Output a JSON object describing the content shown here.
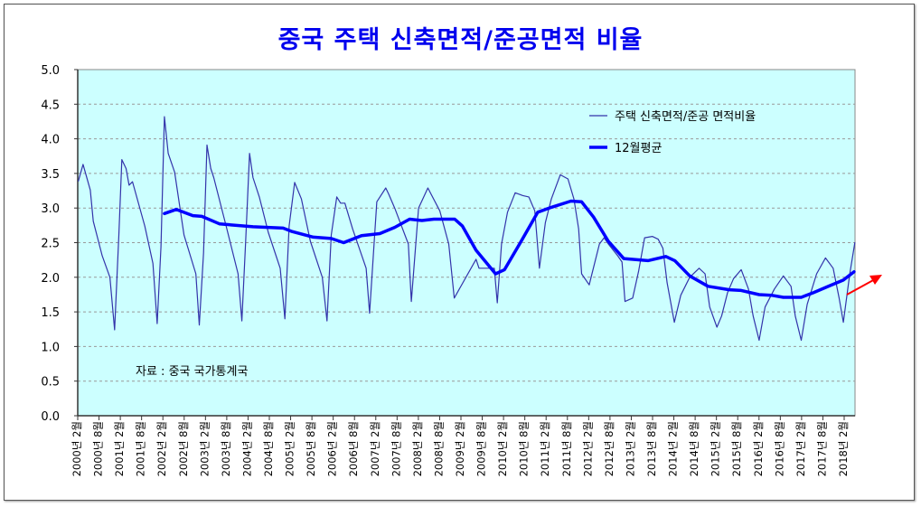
{
  "chart_data": {
    "type": "line",
    "title": "중국 주택 신축면적/준공면적 비율",
    "xlabel": "",
    "ylabel": "",
    "ylim": [
      0,
      5
    ],
    "yticks": [
      "0.0",
      "0.5",
      "1.0",
      "1.5",
      "2.0",
      "2.5",
      "3.0",
      "3.5",
      "4.0",
      "4.5",
      "5.0"
    ],
    "x_unit": "decimal year",
    "xlim": [
      2000.083,
      2018.4
    ],
    "xtick_labels": [
      "2000년 2월",
      "2000년 8월",
      "2001년 2월",
      "2001년 8월",
      "2002년 2월",
      "2002년 8월",
      "2003년 2월",
      "2003년 8월",
      "2004년 2월",
      "2004년 8월",
      "2005년 2월",
      "2005년 8월",
      "2006년 2월",
      "2006년 8월",
      "2007년 2월",
      "2007년 8월",
      "2008년 2월",
      "2008년 8월",
      "2009년 2월",
      "2009년 8월",
      "2010년 2월",
      "2010년 8월",
      "2011년 2월",
      "2011년 8월",
      "2012년 2월",
      "2012년 8월",
      "2013년 2월",
      "2013년 8월",
      "2014년 2월",
      "2014년 8월",
      "2015년 2월",
      "2015년 8월",
      "2016년 2월",
      "2016년 8월",
      "2017년 2월",
      "2017년 8월",
      "2018년 2월"
    ],
    "grid": true,
    "legend_position": "top-right",
    "annotation": "자료 : 중국 국가통계국",
    "colors": {
      "plot_bg": "#ccffff",
      "ratio": "#3333aa",
      "avg": "#0000ff",
      "title": "#0000ee",
      "arrow": "#ff0000"
    },
    "series": [
      {
        "name": "주택 신축면적/준공 면적비율",
        "points": [
          [
            2000.12,
            3.39
          ],
          [
            2000.23,
            3.63
          ],
          [
            2000.4,
            3.26
          ],
          [
            2000.47,
            2.81
          ],
          [
            2000.68,
            2.31
          ],
          [
            2000.86,
            2.0
          ],
          [
            2000.97,
            1.24
          ],
          [
            2001.07,
            2.61
          ],
          [
            2001.14,
            3.7
          ],
          [
            2001.24,
            3.57
          ],
          [
            2001.31,
            3.33
          ],
          [
            2001.39,
            3.38
          ],
          [
            2001.68,
            2.74
          ],
          [
            2001.87,
            2.2
          ],
          [
            2001.97,
            1.33
          ],
          [
            2002.06,
            2.44
          ],
          [
            2002.14,
            4.32
          ],
          [
            2002.23,
            3.79
          ],
          [
            2002.38,
            3.52
          ],
          [
            2002.6,
            2.61
          ],
          [
            2002.88,
            2.05
          ],
          [
            2002.96,
            1.31
          ],
          [
            2003.06,
            2.35
          ],
          [
            2003.14,
            3.91
          ],
          [
            2003.23,
            3.57
          ],
          [
            2003.3,
            3.44
          ],
          [
            2003.59,
            2.74
          ],
          [
            2003.87,
            2.05
          ],
          [
            2003.96,
            1.37
          ],
          [
            2004.05,
            2.52
          ],
          [
            2004.14,
            3.79
          ],
          [
            2004.22,
            3.44
          ],
          [
            2004.37,
            3.16
          ],
          [
            2004.58,
            2.65
          ],
          [
            2004.86,
            2.13
          ],
          [
            2004.97,
            1.4
          ],
          [
            2005.07,
            2.74
          ],
          [
            2005.2,
            3.37
          ],
          [
            2005.36,
            3.13
          ],
          [
            2005.57,
            2.52
          ],
          [
            2005.85,
            2.0
          ],
          [
            2005.96,
            1.37
          ],
          [
            2006.06,
            2.61
          ],
          [
            2006.19,
            3.16
          ],
          [
            2006.28,
            3.07
          ],
          [
            2006.38,
            3.07
          ],
          [
            2006.56,
            2.7
          ],
          [
            2006.88,
            2.13
          ],
          [
            2006.96,
            1.48
          ],
          [
            2007.13,
            3.09
          ],
          [
            2007.34,
            3.29
          ],
          [
            2007.41,
            3.2
          ],
          [
            2007.55,
            3.0
          ],
          [
            2007.87,
            2.48
          ],
          [
            2007.94,
            1.65
          ],
          [
            2008.11,
            3.0
          ],
          [
            2008.33,
            3.29
          ],
          [
            2008.61,
            2.96
          ],
          [
            2008.82,
            2.48
          ],
          [
            2008.95,
            1.7
          ],
          [
            2009.46,
            2.26
          ],
          [
            2009.53,
            2.13
          ],
          [
            2009.89,
            2.13
          ],
          [
            2009.96,
            1.63
          ],
          [
            2010.06,
            2.48
          ],
          [
            2010.2,
            2.94
          ],
          [
            2010.38,
            3.22
          ],
          [
            2010.56,
            3.18
          ],
          [
            2010.7,
            3.16
          ],
          [
            2010.84,
            2.96
          ],
          [
            2010.95,
            2.13
          ],
          [
            2011.09,
            2.79
          ],
          [
            2011.23,
            3.13
          ],
          [
            2011.44,
            3.48
          ],
          [
            2011.62,
            3.42
          ],
          [
            2011.76,
            3.13
          ],
          [
            2011.87,
            2.7
          ],
          [
            2011.94,
            2.05
          ],
          [
            2012.12,
            1.89
          ],
          [
            2012.36,
            2.48
          ],
          [
            2012.47,
            2.57
          ],
          [
            2012.57,
            2.48
          ],
          [
            2012.79,
            2.31
          ],
          [
            2012.89,
            2.22
          ],
          [
            2012.96,
            1.65
          ],
          [
            2013.14,
            1.7
          ],
          [
            2013.28,
            2.09
          ],
          [
            2013.42,
            2.57
          ],
          [
            2013.6,
            2.59
          ],
          [
            2013.74,
            2.55
          ],
          [
            2013.85,
            2.42
          ],
          [
            2013.95,
            1.92
          ],
          [
            2014.12,
            1.35
          ],
          [
            2014.27,
            1.74
          ],
          [
            2014.48,
            2.0
          ],
          [
            2014.7,
            2.13
          ],
          [
            2014.84,
            2.05
          ],
          [
            2014.95,
            1.57
          ],
          [
            2015.12,
            1.28
          ],
          [
            2015.23,
            1.44
          ],
          [
            2015.37,
            1.78
          ],
          [
            2015.51,
            1.98
          ],
          [
            2015.69,
            2.11
          ],
          [
            2015.86,
            1.83
          ],
          [
            2015.97,
            1.44
          ],
          [
            2016.11,
            1.09
          ],
          [
            2016.25,
            1.57
          ],
          [
            2016.47,
            1.83
          ],
          [
            2016.68,
            2.02
          ],
          [
            2016.86,
            1.87
          ],
          [
            2016.96,
            1.44
          ],
          [
            2017.1,
            1.09
          ],
          [
            2017.24,
            1.61
          ],
          [
            2017.46,
            2.05
          ],
          [
            2017.67,
            2.28
          ],
          [
            2017.85,
            2.13
          ],
          [
            2017.99,
            1.7
          ],
          [
            2018.09,
            1.35
          ],
          [
            2018.24,
            2.05
          ],
          [
            2018.36,
            2.5
          ]
        ]
      },
      {
        "name": "12월평균",
        "points": [
          [
            2002.14,
            2.92
          ],
          [
            2002.42,
            2.98
          ],
          [
            2002.81,
            2.89
          ],
          [
            2003.02,
            2.88
          ],
          [
            2003.44,
            2.77
          ],
          [
            2004.22,
            2.73
          ],
          [
            2004.93,
            2.71
          ],
          [
            2005.14,
            2.66
          ],
          [
            2005.64,
            2.58
          ],
          [
            2006.06,
            2.56
          ],
          [
            2006.35,
            2.5
          ],
          [
            2006.77,
            2.6
          ],
          [
            2007.2,
            2.63
          ],
          [
            2007.55,
            2.72
          ],
          [
            2007.9,
            2.84
          ],
          [
            2008.19,
            2.82
          ],
          [
            2008.47,
            2.84
          ],
          [
            2008.96,
            2.84
          ],
          [
            2009.14,
            2.74
          ],
          [
            2009.46,
            2.39
          ],
          [
            2009.92,
            2.05
          ],
          [
            2010.13,
            2.11
          ],
          [
            2010.52,
            2.52
          ],
          [
            2010.91,
            2.94
          ],
          [
            2011.23,
            3.01
          ],
          [
            2011.69,
            3.1
          ],
          [
            2011.94,
            3.09
          ],
          [
            2012.22,
            2.87
          ],
          [
            2012.57,
            2.52
          ],
          [
            2012.93,
            2.27
          ],
          [
            2013.5,
            2.24
          ],
          [
            2013.92,
            2.3
          ],
          [
            2014.13,
            2.24
          ],
          [
            2014.48,
            2.02
          ],
          [
            2014.91,
            1.87
          ],
          [
            2015.41,
            1.82
          ],
          [
            2015.69,
            1.81
          ],
          [
            2016.11,
            1.75
          ],
          [
            2016.4,
            1.74
          ],
          [
            2016.68,
            1.71
          ],
          [
            2017.1,
            1.71
          ],
          [
            2017.39,
            1.78
          ],
          [
            2017.74,
            1.87
          ],
          [
            2018.09,
            1.96
          ],
          [
            2018.34,
            2.08
          ]
        ]
      }
    ]
  }
}
